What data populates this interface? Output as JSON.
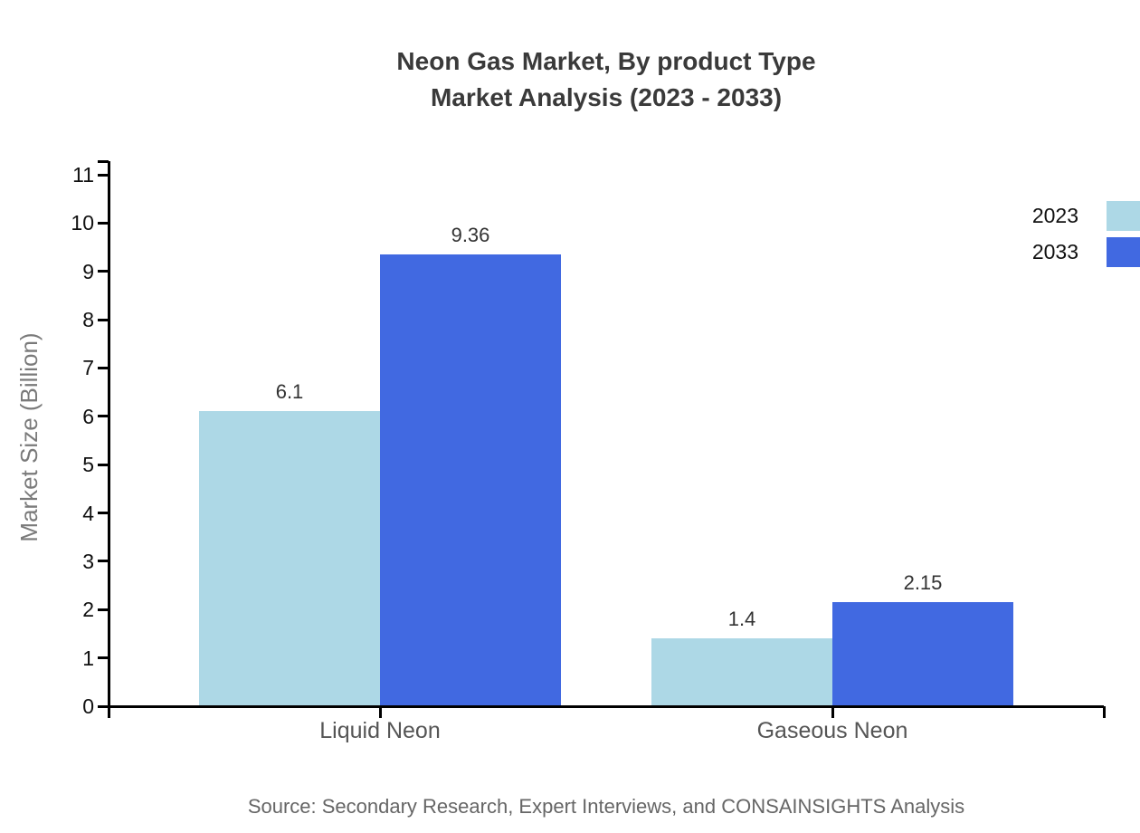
{
  "title": {
    "line1": "Neon Gas Market, By product Type",
    "line2": "Market Analysis (2023 - 2033)"
  },
  "chart_data": {
    "type": "bar",
    "title": "Neon Gas Market, By product Type Market Analysis (2023 - 2033)",
    "categories": [
      "Liquid Neon",
      "Gaseous Neon"
    ],
    "series": [
      {
        "name": "2023",
        "color": "#add8e6",
        "values": [
          6.1,
          1.4
        ]
      },
      {
        "name": "2033",
        "color": "#4169e1",
        "values": [
          9.36,
          2.15
        ]
      }
    ],
    "xlabel": "",
    "ylabel": "Market Size (Billion)",
    "ylim": [
      0,
      11
    ],
    "ytick_interval": 1,
    "yticks": [
      0,
      1,
      2,
      3,
      4,
      5,
      6,
      7,
      8,
      9,
      10,
      11
    ],
    "grid": false,
    "legend_position": "top-right",
    "value_label_format": "plain"
  },
  "legend": {
    "items": [
      {
        "label": "2023",
        "color": "#add8e6"
      },
      {
        "label": "2033",
        "color": "#4169e1"
      }
    ]
  },
  "source": "Source: Secondary Research, Expert Interviews, and CONSAINSIGHTS Analysis",
  "colors": {
    "series_2023": "#add8e6",
    "series_2033": "#4169e1",
    "axis": "#000000",
    "title_text": "#3a3a3a",
    "tick_text": "#111111",
    "category_text": "#555555",
    "value_text": "#333333",
    "ylabel_text": "#7a7a7a",
    "source_text": "#666666",
    "background": "#ffffff"
  }
}
